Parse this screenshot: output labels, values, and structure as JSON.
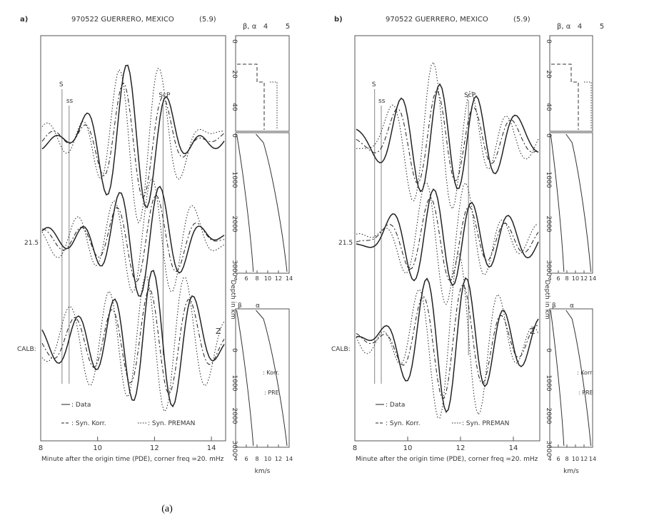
{
  "chart_data": [
    {
      "type": "line",
      "panel_label": "a)",
      "title": "970522 GUERRERO, MEXICO",
      "magnitude": "(5.9)",
      "xlabel": "Minute after the origin time (PDE), corner freq  =20. mHz",
      "xlim": [
        8,
        14.5
      ],
      "xticks": [
        8,
        10,
        12,
        14
      ],
      "phase_markers": [
        {
          "label": "S",
          "x": 8.75
        },
        {
          "label": "ss",
          "x": 9.0
        },
        {
          "label": "ScP",
          "x": 12.3
        }
      ],
      "trace_labels": [
        "21.5",
        "CALB:"
      ],
      "trace_annotations": [
        "Z"
      ],
      "legend": [
        {
          "name": ": Data",
          "style": "solid"
        },
        {
          "name": ": Syn. Korr.",
          "style": "dashed"
        },
        {
          "name": ": Syn. PREMAN",
          "style": "dotted"
        }
      ],
      "caption": "(a)"
    },
    {
      "type": "line",
      "panel_label": "b)",
      "title": "970522 GUERRERO, MEXICO",
      "magnitude": "(5.9)",
      "xlabel": "Minute after the origin time (PDE), corner freq  =20. mHz",
      "xlim": [
        8,
        15
      ],
      "xticks": [
        8,
        10,
        12,
        14
      ],
      "phase_markers": [
        {
          "label": "S",
          "x": 8.75
        },
        {
          "label": "ss",
          "x": 9.0
        },
        {
          "label": "ScP",
          "x": 12.3
        }
      ],
      "trace_labels": [
        "21.5",
        "CALB:"
      ],
      "trace_annotations": [
        "Z"
      ],
      "legend": [
        {
          "name": ": Data",
          "style": "solid"
        },
        {
          "name": ": Syn. Korr.",
          "style": "dashed"
        },
        {
          "name": ": Syn. PREMAN",
          "style": "dotted"
        }
      ],
      "caption": "(b)"
    },
    {
      "type": "line",
      "panel": "a",
      "ylabel": "Depth in km",
      "xlabel": "km/s",
      "velocity_axis_title": [
        "β",
        "α"
      ],
      "velocity_axis_ticks": [
        4,
        5
      ],
      "crust_depth_ticks": [
        0,
        20,
        40
      ],
      "mantle_depth_ticks": [
        0,
        1000,
        2000,
        3000
      ],
      "velocity_ticks": [
        4,
        6,
        8,
        10,
        12,
        14
      ],
      "mantle_legend": [
        "β",
        "α"
      ],
      "model_labels": [
        ": Korr.",
        ": PRE"
      ]
    },
    {
      "type": "line",
      "panel": "b",
      "ylabel": "Depth in km",
      "xlabel": "km/s",
      "velocity_axis_title": [
        "β",
        "α"
      ],
      "velocity_axis_ticks": [
        4,
        5
      ],
      "crust_depth_ticks": [
        0,
        20,
        40
      ],
      "mantle_depth_ticks": [
        0,
        1000,
        2000,
        3000
      ],
      "velocity_ticks": [
        4,
        6,
        8,
        10,
        12,
        14
      ],
      "mantle_legend": [
        "β",
        "α"
      ],
      "model_labels": [
        ": Korr.",
        ": PRE"
      ]
    }
  ]
}
